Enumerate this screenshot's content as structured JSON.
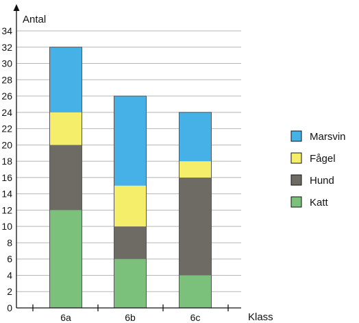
{
  "chart_data": {
    "type": "bar",
    "stacked": true,
    "categories": [
      "6a",
      "6b",
      "6c"
    ],
    "series": [
      {
        "name": "Katt",
        "values": [
          12,
          6,
          4
        ],
        "color": "#7bc17c"
      },
      {
        "name": "Hund",
        "values": [
          8,
          4,
          12
        ],
        "color": "#6e6b65"
      },
      {
        "name": "Fågel",
        "values": [
          4,
          5,
          2
        ],
        "color": "#f4ee6a"
      },
      {
        "name": "Marsvin",
        "values": [
          8,
          11,
          6
        ],
        "color": "#45b1e6"
      }
    ],
    "legend_order": [
      "Marsvin",
      "Fågel",
      "Hund",
      "Katt"
    ],
    "xlabel": "Klass",
    "ylabel": "Antal",
    "ylim": [
      0,
      34
    ],
    "yticks": [
      0,
      2,
      4,
      6,
      8,
      10,
      12,
      14,
      16,
      18,
      20,
      22,
      24,
      26,
      28,
      30,
      32,
      34
    ],
    "grid": true,
    "legend_position": "right"
  }
}
